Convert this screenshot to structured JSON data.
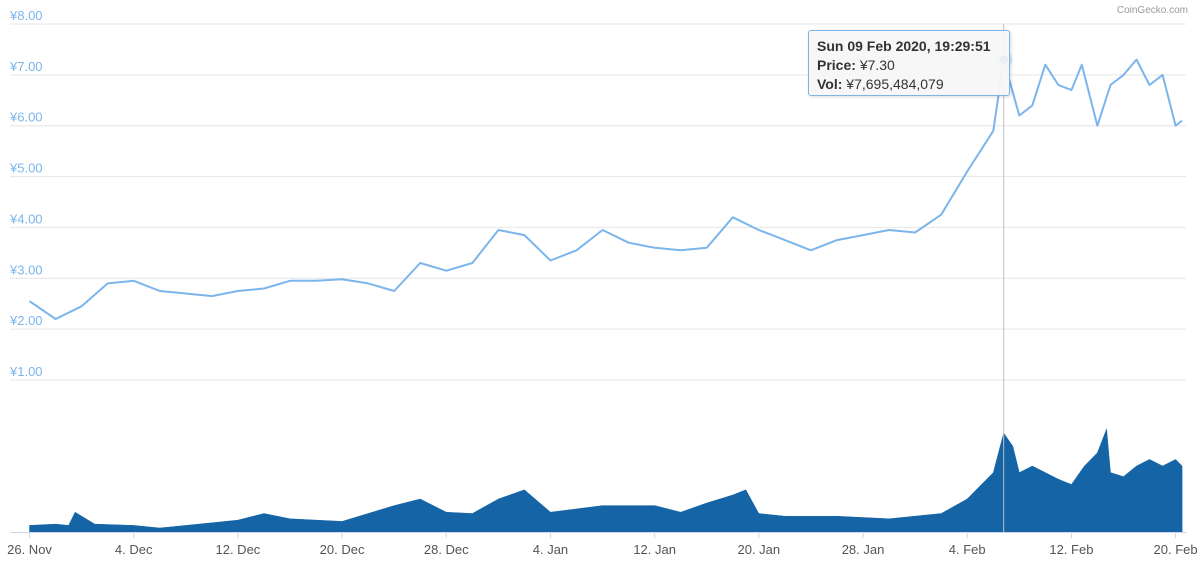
{
  "credit": "CoinGecko.com",
  "tooltip": {
    "date": "Sun 09 Feb 2020, 19:29:51",
    "price_label": "Price:",
    "price_value": "¥7.30",
    "vol_label": "Vol:",
    "vol_value": "¥7,695,484,079"
  },
  "colors": {
    "price_line": "#7cb5ec",
    "volume_fill": "#1565a6",
    "crosshair": "#c0c0c0",
    "grid": "#e6e6e6"
  },
  "chart_data": [
    {
      "type": "line",
      "title": "",
      "x_ticks": [
        "26. Nov",
        "4. Dec",
        "12. Dec",
        "20. Dec",
        "28. Dec",
        "4. Jan",
        "12. Jan",
        "20. Jan",
        "28. Jan",
        "4. Feb",
        "12. Feb",
        "20. Feb"
      ],
      "y_ticks": [
        "¥1.00",
        "¥2.00",
        "¥3.00",
        "¥4.00",
        "¥5.00",
        "¥6.00",
        "¥7.00",
        "¥8.00"
      ],
      "ylim": [
        1,
        8
      ],
      "xlim_days": [
        -1.5,
        88.8
      ],
      "series": [
        {
          "x": [
            0,
            2,
            4,
            6,
            8,
            10,
            12,
            14,
            16,
            18,
            20,
            22,
            24,
            26,
            28,
            30,
            32,
            34,
            36,
            38,
            40,
            42,
            44,
            46,
            48,
            50,
            52,
            54,
            56,
            58,
            60,
            62,
            64,
            66,
            68,
            70,
            72,
            74,
            74.8,
            76,
            77,
            78,
            79,
            80,
            80.8,
            82,
            83,
            84,
            85,
            86,
            87,
            88,
            88.5
          ],
          "y": [
            2.55,
            2.2,
            2.45,
            2.9,
            2.95,
            2.75,
            2.7,
            2.65,
            2.75,
            2.8,
            2.95,
            2.95,
            2.98,
            2.9,
            2.75,
            3.3,
            3.15,
            3.3,
            3.95,
            3.85,
            3.35,
            3.55,
            3.95,
            3.7,
            3.6,
            3.55,
            3.6,
            4.2,
            3.95,
            3.75,
            3.55,
            3.75,
            3.85,
            3.95,
            3.9,
            4.25,
            5.1,
            5.9,
            7.3,
            6.2,
            6.4,
            7.2,
            6.8,
            6.7,
            7.2,
            6.0,
            6.8,
            7.0,
            7.3,
            6.8,
            7.0,
            6.0,
            6.1
          ]
        }
      ]
    },
    {
      "type": "area",
      "title": "",
      "series": [
        {
          "x": [
            0,
            2,
            3,
            3.5,
            5,
            8,
            10,
            14,
            16,
            18,
            20,
            24,
            28,
            30,
            32,
            34,
            36,
            38,
            40,
            44,
            48,
            50,
            52,
            54,
            55,
            56,
            58,
            62,
            66,
            70,
            72,
            73,
            74,
            74.8,
            75.5,
            76,
            77,
            78,
            79,
            80,
            81,
            82,
            82.7,
            83,
            84,
            85,
            86,
            87,
            88,
            88.5
          ],
          "y": [
            0.05,
            0.06,
            0.05,
            0.15,
            0.06,
            0.05,
            0.03,
            0.07,
            0.09,
            0.14,
            0.1,
            0.08,
            0.2,
            0.25,
            0.15,
            0.14,
            0.25,
            0.32,
            0.15,
            0.2,
            0.2,
            0.15,
            0.22,
            0.28,
            0.32,
            0.14,
            0.12,
            0.12,
            0.1,
            0.14,
            0.25,
            0.35,
            0.45,
            0.75,
            0.65,
            0.45,
            0.5,
            0.45,
            0.4,
            0.36,
            0.5,
            0.6,
            0.78,
            0.45,
            0.42,
            0.5,
            0.55,
            0.5,
            0.55,
            0.5
          ]
        }
      ]
    }
  ]
}
